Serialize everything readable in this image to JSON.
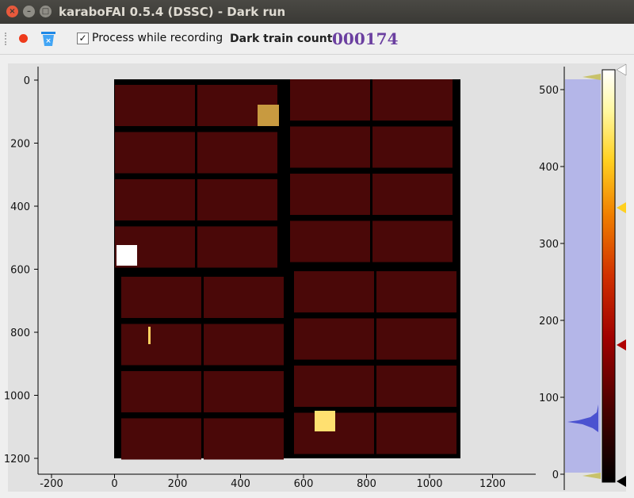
{
  "window": {
    "title": "karaboFAI 0.5.4 (DSSC) - Dark run",
    "close_glyph": "×",
    "min_glyph": "–",
    "max_glyph": "□"
  },
  "toolbar": {
    "record_icon": "record-icon",
    "clear_icon": "trash-bin-icon",
    "process_checkbox_checked": true,
    "process_checkbox_glyph": "✓",
    "process_label": "Process while recording",
    "dark_train_label": "Dark train count:",
    "dark_train_value": "000174",
    "value_color": "#6b3fa0"
  },
  "image_view": {
    "x_ticks": [
      "-200",
      "0",
      "200",
      "400",
      "600",
      "800",
      "1000",
      "1200"
    ],
    "y_ticks": [
      "0",
      "200",
      "400",
      "600",
      "800",
      "1000",
      "1200"
    ]
  },
  "histogram": {
    "ticks": [
      "500",
      "400",
      "300",
      "200",
      "100",
      "0"
    ],
    "gradient_colors": [
      "#000000",
      "#7a0000",
      "#c02000",
      "#e88000",
      "#ffd020",
      "#ffffff"
    ]
  }
}
